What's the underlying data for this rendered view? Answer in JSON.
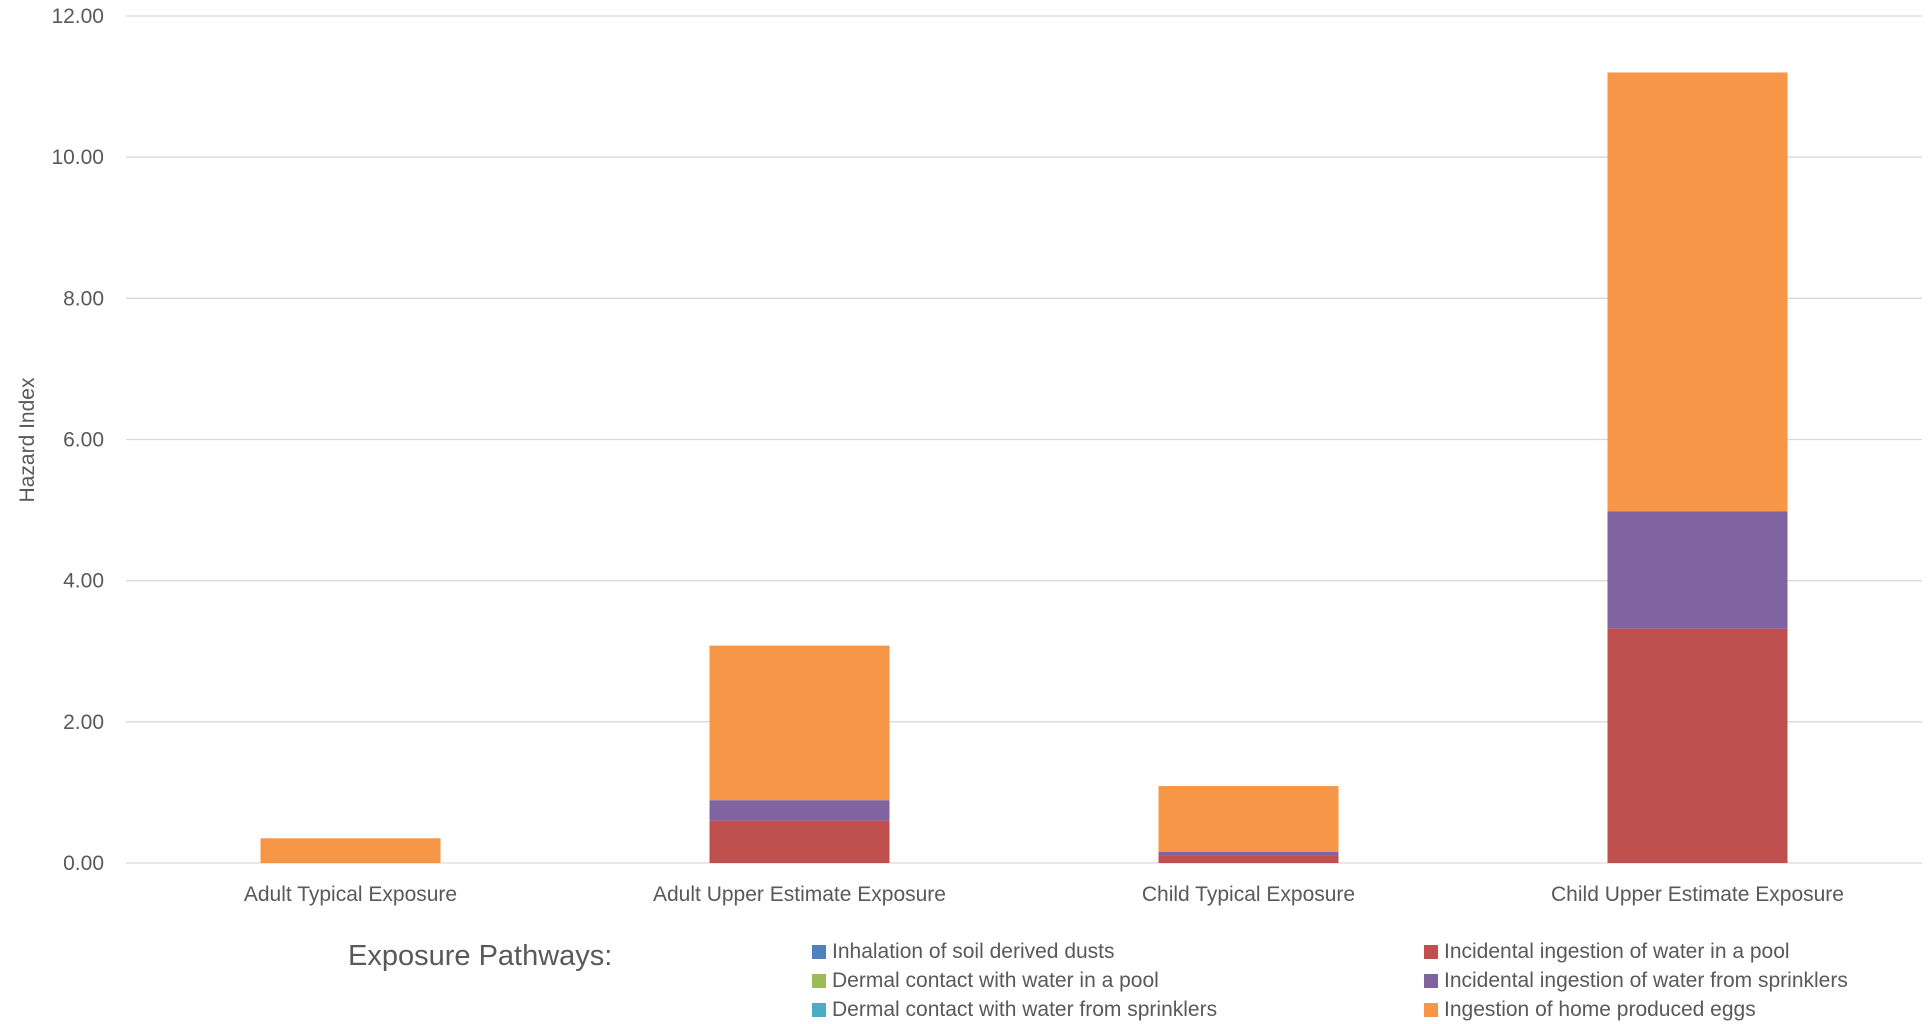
{
  "chart_data": {
    "type": "bar",
    "stacked": true,
    "title": "",
    "xlabel": "",
    "ylabel": "Hazard Index",
    "ylim": [
      0,
      12
    ],
    "yticks": [
      "0.00",
      "2.00",
      "4.00",
      "6.00",
      "8.00",
      "10.00",
      "12.00"
    ],
    "grid": true,
    "legend_position": "bottom",
    "categories": [
      "Adult Typical Exposure",
      "Adult Upper Estimate Exposure",
      "Child Typical Exposure",
      "Child Upper Estimate Exposure"
    ],
    "series": [
      {
        "name": "Inhalation of soil derived dusts",
        "color": "#4F81BD",
        "values": [
          0.0,
          0.0,
          0.0,
          0.0
        ]
      },
      {
        "name": "Dermal contact with water in a pool",
        "color": "#9BBB59",
        "values": [
          0.0,
          0.0,
          0.0,
          0.0
        ]
      },
      {
        "name": "Dermal contact with water from sprinklers",
        "color": "#4BACC6",
        "values": [
          0.0,
          0.0,
          0.0,
          0.0
        ]
      },
      {
        "name": "Incidental ingestion of water in a pool",
        "color": "#C0504D",
        "values": [
          0.0,
          0.6,
          0.1,
          3.32
        ]
      },
      {
        "name": "Incidental ingestion of water from sprinklers",
        "color": "#8064A2",
        "values": [
          0.0,
          0.29,
          0.06,
          1.66
        ]
      },
      {
        "name": "Ingestion of home produced eggs",
        "color": "#F79646",
        "values": [
          0.35,
          2.19,
          0.93,
          6.22
        ]
      }
    ]
  },
  "legend": {
    "title": "Exposure Pathways:",
    "columns": [
      [
        "Inhalation of soil derived dusts",
        "Dermal contact with water in a pool",
        "Dermal contact with water from sprinklers"
      ],
      [
        "Incidental ingestion of water in a pool",
        "Incidental ingestion of water from sprinklers",
        "Ingestion of home produced eggs"
      ]
    ]
  }
}
